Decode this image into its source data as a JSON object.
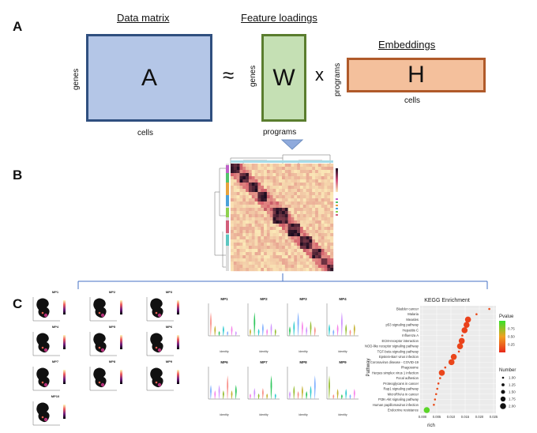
{
  "panels": {
    "a": "A",
    "b": "B",
    "c": "C"
  },
  "panel_a": {
    "data_matrix_title": "Data matrix",
    "feature_loadings_title": "Feature loadings",
    "embeddings_title": "Embeddings",
    "matrix_a": {
      "letter": "A",
      "row_label": "genes",
      "col_label": "cells"
    },
    "matrix_w": {
      "letter": "W",
      "row_label": "genes",
      "col_label": "programs"
    },
    "matrix_h": {
      "letter": "H",
      "row_label": "programs",
      "col_label": "cells"
    },
    "approx_symbol": "≈",
    "times_symbol": "x",
    "colors": {
      "a_fill": "#b4c6e7",
      "a_border": "#2f4f7f",
      "w_fill": "#c5e0b4",
      "w_border": "#5a7d2e",
      "h_fill": "#f4c09c",
      "h_border": "#b05a2a",
      "arrow": "#8faadc"
    }
  },
  "panel_b": {
    "heatmap_colors": {
      "low": "#fbe9b7",
      "high": "#1a0a1e",
      "grid": "#e8cfa0"
    }
  },
  "panel_c": {
    "umap_titles": [
      "MP1",
      "MP2",
      "MP3",
      "MP4",
      "MP5",
      "MP6",
      "MP7",
      "MP8",
      "MP9",
      "MP10"
    ],
    "violin_titles": [
      "MP1",
      "MP2",
      "MP3",
      "MP4",
      "MP6",
      "MP7",
      "MP8",
      "MP9"
    ],
    "violin_xlabel": "identity",
    "chart_data": {
      "type": "scatter",
      "title": "KEGG Enrichment",
      "xlabel": "rich",
      "ylabel": "Pathway",
      "xlim": [
        0.0,
        0.025
      ],
      "x_ticks": [
        "0.000",
        "0.005",
        "0.010",
        "0.015",
        "0.020",
        "0.025"
      ],
      "categories": [
        "Bladder cancer",
        "Malaria",
        "Measles",
        "p53 signaling pathway",
        "Hepatitis C",
        "Influenza A",
        "ECM-receptor interaction",
        "NOD-like receptor signaling pathway",
        "TGF-beta signaling pathway",
        "Epstein-Barr virus infection",
        "Coronavirus disease - COVID-19",
        "Phagosome",
        "Herpes simplex virus 1 infection",
        "Focal adhesion",
        "Proteoglycans in cancer",
        "Rap1 signaling pathway",
        "MicroRNAs in cancer",
        "PI3K-Akt signaling pathway",
        "Human papillomavirus infection",
        "Endocrine resistance"
      ],
      "rich": [
        0.0235,
        0.019,
        0.016,
        0.0155,
        0.0148,
        0.014,
        0.0138,
        0.0132,
        0.0128,
        0.011,
        0.0102,
        0.008,
        0.0068,
        0.0062,
        0.0056,
        0.0052,
        0.0048,
        0.0044,
        0.004,
        0.0015
      ],
      "pvalue": [
        0.15,
        0.15,
        0.1,
        0.1,
        0.1,
        0.1,
        0.1,
        0.12,
        0.12,
        0.12,
        0.12,
        0.12,
        0.12,
        0.12,
        0.12,
        0.15,
        0.15,
        0.15,
        0.15,
        0.9
      ],
      "number": [
        1.0,
        1.0,
        2.0,
        2.0,
        2.0,
        1.0,
        2.0,
        2.0,
        1.0,
        2.0,
        2.0,
        1.0,
        2.0,
        1.0,
        1.0,
        1.0,
        1.0,
        1.0,
        1.0,
        2.0
      ],
      "legend": {
        "pvalue_title": "Pvalue",
        "pvalue_ticks": [
          "0.75",
          "0.50",
          "0.25"
        ],
        "number_title": "Number",
        "number_ticks": [
          "1.00",
          "1.25",
          "1.50",
          "1.75",
          "2.00"
        ],
        "placement": "right"
      },
      "colors": {
        "low_p": "#e8291a",
        "high_p": "#36e22a"
      }
    }
  }
}
